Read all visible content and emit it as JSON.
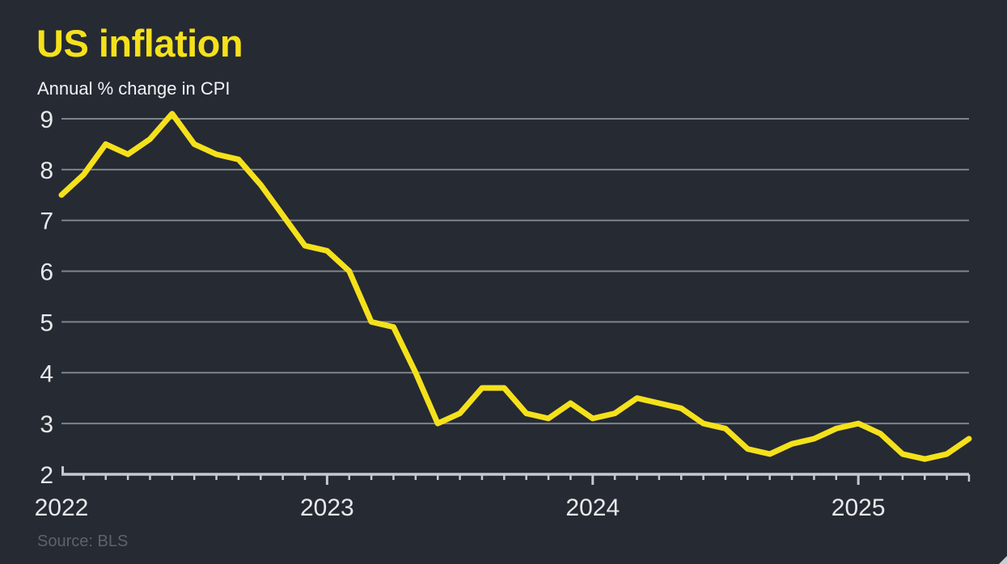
{
  "header": {
    "title": "US inflation",
    "subtitle": "Annual % change in CPI"
  },
  "footer": {
    "source": "Source: BLS"
  },
  "chart_data": {
    "type": "line",
    "title": "US inflation",
    "subtitle": "Annual % change in CPI",
    "source": "Source: BLS",
    "x_start": "2022-01",
    "x_end": "2025-06",
    "x_frequency": "monthly",
    "series": [
      {
        "name": "US CPI annual % change",
        "values": [
          7.5,
          7.9,
          8.5,
          8.3,
          8.6,
          9.1,
          8.5,
          8.3,
          8.2,
          7.7,
          7.1,
          6.5,
          6.4,
          6.0,
          5.0,
          4.9,
          4.0,
          3.0,
          3.2,
          3.7,
          3.7,
          3.2,
          3.1,
          3.4,
          3.1,
          3.2,
          3.5,
          3.4,
          3.3,
          3.0,
          2.9,
          2.5,
          2.4,
          2.6,
          2.7,
          2.9,
          3.0,
          2.8,
          2.4,
          2.3,
          2.4,
          2.7
        ]
      }
    ],
    "ylim": [
      2,
      9
    ],
    "yticks": [
      2,
      3,
      4,
      5,
      6,
      7,
      8,
      9
    ],
    "xticks": [
      {
        "label": "2022",
        "month_index": 0
      },
      {
        "label": "2023",
        "month_index": 12
      },
      {
        "label": "2024",
        "month_index": 24
      },
      {
        "label": "2025",
        "month_index": 36
      }
    ],
    "grid": "horizontal",
    "legend": "none",
    "colors": {
      "line": "#f5e11b",
      "title": "#f5e11b",
      "background": "#262a33",
      "gridline": "#7f838a",
      "axis": "#c6c9ce",
      "tick_label": "#e8e9eb",
      "subtitle_text": "#f2f3f5",
      "source_text": "#5d626b",
      "corner_mark": "#c9ccd1"
    }
  }
}
